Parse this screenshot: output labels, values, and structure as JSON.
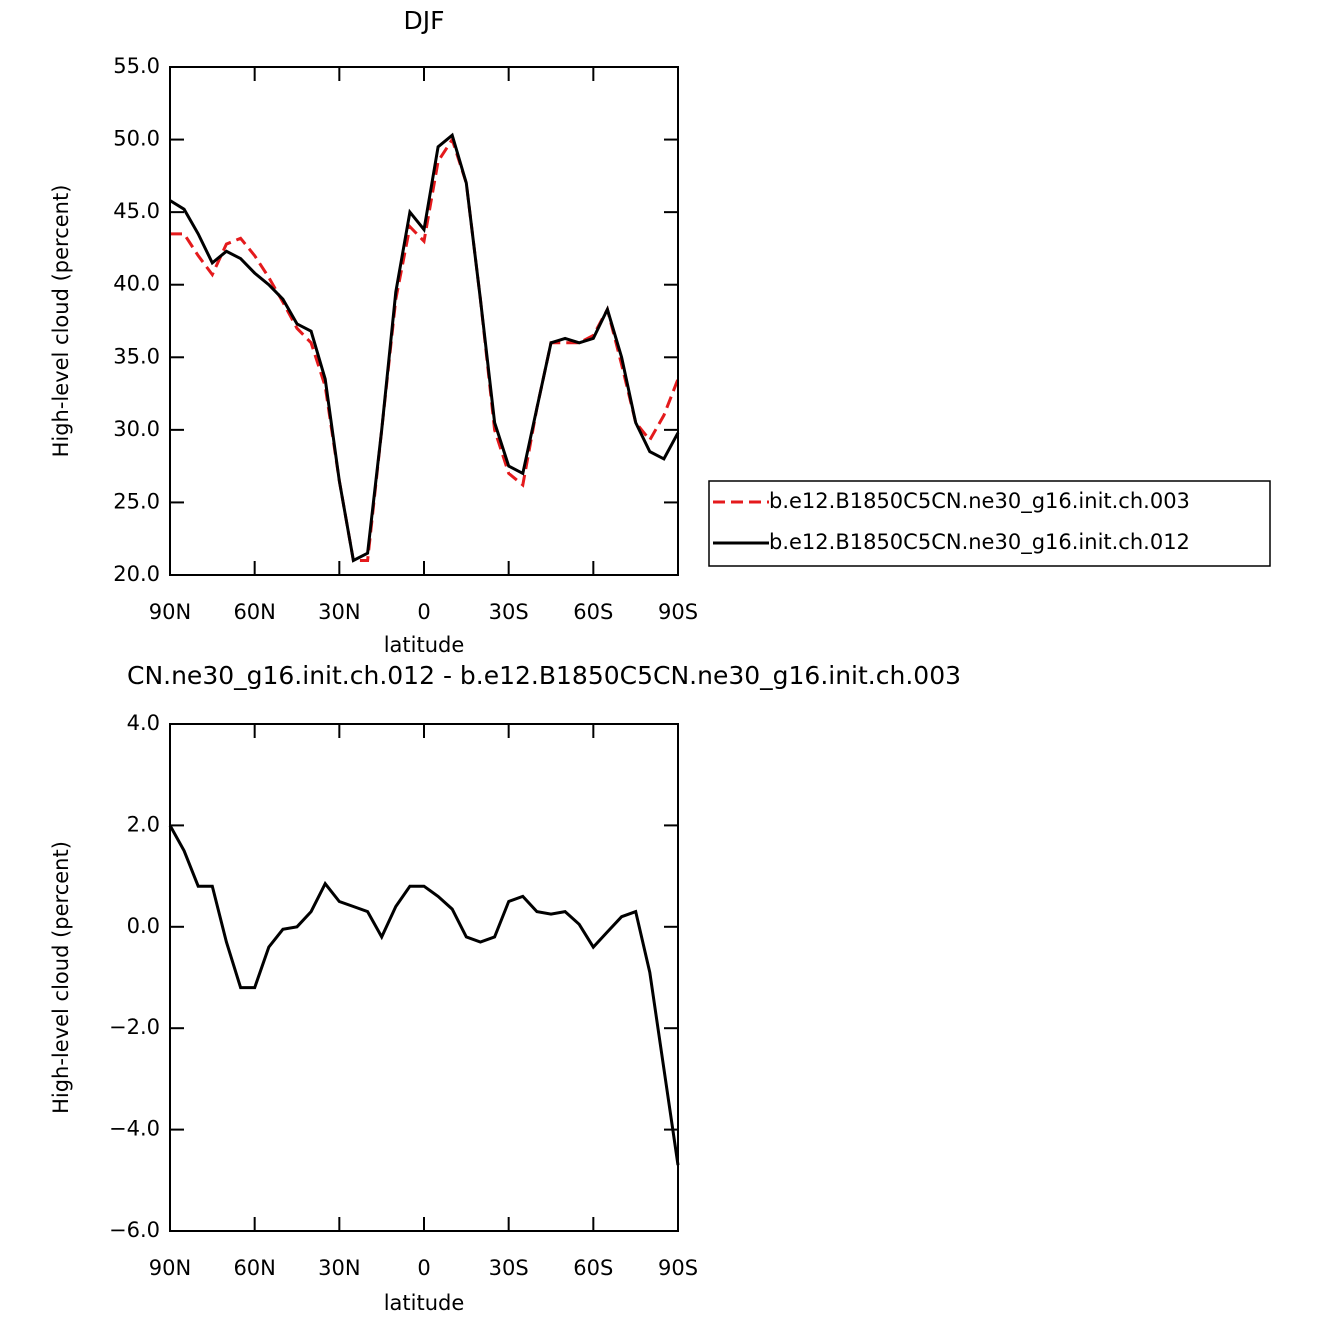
{
  "chart_data": [
    {
      "type": "line",
      "title": "DJF",
      "xlabel": "latitude",
      "ylabel": "High-level cloud (percent)",
      "x": [
        90,
        85,
        80,
        75,
        70,
        65,
        60,
        55,
        50,
        45,
        40,
        35,
        30,
        25,
        20,
        15,
        10,
        5,
        0,
        -5,
        -10,
        -15,
        -20,
        -25,
        -30,
        -35,
        -40,
        -45,
        -50,
        -55,
        -60,
        -65,
        -70,
        -75,
        -80,
        -85,
        -90
      ],
      "series": [
        {
          "name": "b.e12.B1850C5CN.ne30_g16.init.ch.003",
          "color": "#e41a1c",
          "line_style": "dashed",
          "values": [
            43.5,
            43.5,
            42.0,
            40.7,
            42.8,
            43.2,
            42.0,
            40.5,
            38.8,
            37.0,
            36.0,
            33.0,
            26.5,
            21.0,
            21.0,
            30.0,
            39.0,
            44.0,
            43.0,
            48.5,
            50.0,
            47.0,
            39.0,
            30.0,
            27.0,
            26.2,
            31.5,
            36.0,
            36.0,
            36.0,
            36.5,
            38.3,
            34.5,
            30.5,
            29.3,
            31.0,
            33.5
          ]
        },
        {
          "name": "b.e12.B1850C5CN.ne30_g16.init.ch.012",
          "color": "#000000",
          "line_style": "solid",
          "values": [
            45.8,
            45.2,
            43.5,
            41.5,
            42.3,
            41.8,
            40.8,
            40.0,
            39.0,
            37.3,
            36.8,
            33.5,
            26.5,
            21.0,
            21.5,
            30.0,
            39.5,
            45.0,
            43.8,
            49.5,
            50.3,
            47.0,
            39.0,
            30.5,
            27.5,
            27.0,
            31.5,
            36.0,
            36.3,
            36.0,
            36.3,
            38.3,
            35.0,
            30.5,
            28.5,
            28.0,
            29.8
          ]
        }
      ],
      "xlim": [
        90,
        -90
      ],
      "xticks": [
        {
          "value": 90,
          "label": "90N"
        },
        {
          "value": 60,
          "label": "60N"
        },
        {
          "value": 30,
          "label": "30N"
        },
        0,
        {
          "value": -30,
          "label": "30S"
        },
        {
          "value": -60,
          "label": "60S"
        },
        {
          "value": -90,
          "label": "90S"
        }
      ],
      "ylim": [
        20,
        55
      ],
      "yticks": [
        {
          "value": 20,
          "label": "20.0"
        },
        {
          "value": 25,
          "label": "25.0"
        },
        {
          "value": 30,
          "label": "30.0"
        },
        {
          "value": 35,
          "label": "35.0"
        },
        {
          "value": 40,
          "label": "40.0"
        },
        {
          "value": 45,
          "label": "45.0"
        },
        {
          "value": 50,
          "label": "50.0"
        },
        {
          "value": 55,
          "label": "55.0"
        }
      ],
      "legend": "right",
      "grid": false
    },
    {
      "type": "line",
      "title": "CN.ne30_g16.init.ch.012 - b.e12.B1850C5CN.ne30_g16.init.ch.003",
      "xlabel": "latitude",
      "ylabel": "High-level cloud (percent)",
      "x": [
        90,
        85,
        80,
        75,
        70,
        65,
        60,
        55,
        50,
        45,
        40,
        35,
        30,
        25,
        20,
        15,
        10,
        5,
        0,
        -5,
        -10,
        -15,
        -20,
        -25,
        -30,
        -35,
        -40,
        -45,
        -50,
        -55,
        -60,
        -65,
        -70,
        -75,
        -80,
        -85,
        -90
      ],
      "values": [
        2.0,
        1.5,
        0.8,
        0.8,
        -0.3,
        -1.2,
        -1.2,
        -0.4,
        -0.05,
        0.0,
        0.3,
        0.85,
        0.5,
        0.4,
        0.3,
        -0.2,
        0.4,
        0.8,
        0.8,
        0.6,
        0.35,
        -0.2,
        -0.3,
        -0.2,
        0.5,
        0.6,
        0.3,
        0.25,
        0.3,
        0.05,
        -0.4,
        -0.1,
        0.2,
        0.3,
        -0.9,
        -2.8,
        -4.7
      ],
      "color": "#000000",
      "xlim": [
        90,
        -90
      ],
      "xticks": [
        {
          "value": 90,
          "label": "90N"
        },
        {
          "value": 60,
          "label": "60N"
        },
        {
          "value": 30,
          "label": "30N"
        },
        0,
        {
          "value": -30,
          "label": "30S"
        },
        {
          "value": -60,
          "label": "60S"
        },
        {
          "value": -90,
          "label": "90S"
        }
      ],
      "ylim": [
        -6,
        4
      ],
      "yticks": [
        {
          "value": -6,
          "label": "−6.0"
        },
        {
          "value": -4,
          "label": "−4.0"
        },
        {
          "value": -2,
          "label": "−2.0"
        },
        {
          "value": 0,
          "label": "0.0"
        },
        {
          "value": 2,
          "label": "2.0"
        },
        {
          "value": 4,
          "label": "4.0"
        }
      ],
      "grid": false
    }
  ]
}
